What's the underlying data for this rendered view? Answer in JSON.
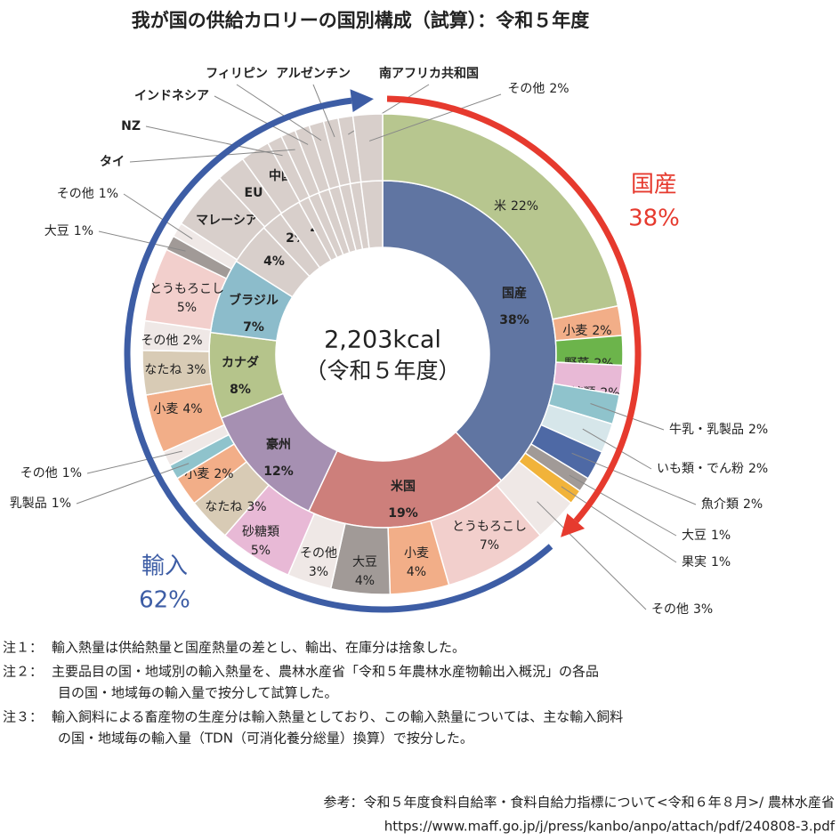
{
  "chart_data": {
    "type": "donut",
    "title": "我が国の供給カロリーの国別構成（試算）：令和５年度",
    "center_label": [
      "2,203kcal",
      "（令和５年度）"
    ],
    "arcs": [
      {
        "name": "国産",
        "value": 38,
        "value_label": "38%",
        "color": "#e63a2e"
      },
      {
        "name": "輸入",
        "value": 62,
        "value_label": "62%",
        "color": "#3d5da5"
      }
    ],
    "sectors": [
      {
        "name": "国産",
        "value": 38,
        "value_label": "38%",
        "color": "#6075a2",
        "items": [
          {
            "name": "米",
            "value": 22,
            "value_label": "22%",
            "color": "#b7c68f"
          },
          {
            "name": "小麦",
            "value": 2,
            "value_label": "2%",
            "color": "#f2ae88"
          },
          {
            "name": "野菜",
            "value": 2,
            "value_label": "2%",
            "color": "#6cb44b"
          },
          {
            "name": "砂糖類",
            "value": 2,
            "value_label": "2%",
            "color": "#e8b9d6"
          },
          {
            "name": "牛乳・乳製品",
            "value": 2,
            "value_label": "2%",
            "color": "#8fc3cc"
          },
          {
            "name": "いも類・でん粉",
            "value": 2,
            "value_label": "2%",
            "color": "#d6e6ea"
          },
          {
            "name": "魚介類",
            "value": 2,
            "value_label": "2%",
            "color": "#4e69a5"
          },
          {
            "name": "大豆",
            "value": 1,
            "value_label": "1%",
            "color": "#a19a97"
          },
          {
            "name": "果実",
            "value": 1,
            "value_label": "1%",
            "color": "#f1b33a"
          },
          {
            "name": "その他",
            "value": 3,
            "value_label": "3%",
            "color": "#efe8e6"
          }
        ]
      },
      {
        "name": "米国",
        "value": 19,
        "value_label": "19%",
        "color": "#cd7f7b",
        "items": [
          {
            "name": "とうもろこし",
            "value": 7,
            "value_label": "7%",
            "color": "#f2cfcc"
          },
          {
            "name": "小麦",
            "value": 4,
            "value_label": "4%",
            "color": "#f2ae88"
          },
          {
            "name": "大豆",
            "value": 4,
            "value_label": "4%",
            "color": "#a19a97"
          },
          {
            "name": "その他",
            "value": 3,
            "value_label": "3%",
            "color": "#efe8e6"
          }
        ]
      },
      {
        "name": "豪州",
        "value": 12,
        "value_label": "12%",
        "color": "#a690b2",
        "items": [
          {
            "name": "砂糖類",
            "value": 5,
            "value_label": "5%",
            "color": "#e8b9d6"
          },
          {
            "name": "なたね",
            "value": 3,
            "value_label": "3%",
            "color": "#d8cbb5"
          },
          {
            "name": "小麦",
            "value": 2,
            "value_label": "2%",
            "color": "#f2ae88"
          },
          {
            "name": "乳製品",
            "value": 1,
            "value_label": "1%",
            "color": "#8fc3cc"
          },
          {
            "name": "その他",
            "value": 1,
            "value_label": "1%",
            "color": "#efe8e6"
          }
        ]
      },
      {
        "name": "カナダ",
        "value": 8,
        "value_label": "8%",
        "color": "#b5c48b",
        "items": [
          {
            "name": "小麦",
            "value": 4,
            "value_label": "4%",
            "color": "#f2ae88"
          },
          {
            "name": "なたね",
            "value": 3,
            "value_label": "3%",
            "color": "#d8cbb5"
          },
          {
            "name": "その他",
            "value": 2,
            "value_label": "2%",
            "color": "#efe8e6"
          }
        ]
      },
      {
        "name": "ブラジル",
        "value": 7,
        "value_label": "7%",
        "color": "#8cbccb",
        "items": [
          {
            "name": "とうもろこし",
            "value": 5,
            "value_label": "5%",
            "color": "#f2cfcc"
          },
          {
            "name": "大豆",
            "value": 1,
            "value_label": "1%",
            "color": "#a19a97"
          },
          {
            "name": "その他",
            "value": 1,
            "value_label": "1%",
            "color": "#efe8e6"
          }
        ]
      },
      {
        "name": "マレーシア",
        "value": 4,
        "value_label": "4%",
        "color": "#d8cfcb"
      },
      {
        "name": "EU",
        "value": 2,
        "value_label": "2%",
        "color": "#d8cfcb"
      },
      {
        "name": "中国",
        "value": 2,
        "value_label": "2%",
        "color": "#d8cfcb"
      },
      {
        "name": "NZ",
        "value": 1,
        "color": "#d8cfcb"
      },
      {
        "name": "タイ",
        "value": 1,
        "color": "#d8cfcb"
      },
      {
        "name": "インドネシア",
        "value": 1,
        "color": "#d8cfcb"
      },
      {
        "name": "フィリピン",
        "value": 1,
        "color": "#d8cfcb"
      },
      {
        "name": "アルゼンチン",
        "value": 1,
        "color": "#d8cfcb"
      },
      {
        "name": "南アフリカ共和国",
        "value": 1,
        "color": "#d8cfcb"
      },
      {
        "name": "その他",
        "value": 2,
        "value_label": "2%",
        "color": "#d8cfcb"
      }
    ],
    "notes": [
      {
        "label": "注１：",
        "lines": [
          "輸入熱量は供給熱量と国産熱量の差とし、輸出、在庫分は捨象した。"
        ]
      },
      {
        "label": "注２：",
        "lines": [
          "主要品目の国・地域別の輸入熱量を、農林水産省「令和５年農林水産物輸出入概況」の各品",
          "目の国・地域毎の輸入量で按分して試算した。"
        ]
      },
      {
        "label": "注３：",
        "lines": [
          "輸入飼料による畜産物の生産分は輸入熱量としており、この輸入熱量については、主な輸入飼料",
          "の国・地域毎の輸入量（TDN（可消化養分総量）換算）で按分した。"
        ]
      }
    ],
    "source": [
      "参考：令和５年度食料自給率・食料自給力指標について<令和６年８月>/ 農林水産省",
      "https://www.maff.go.jp/j/press/kanbo/anpo/attach/pdf/240808-3.pdf"
    ]
  }
}
